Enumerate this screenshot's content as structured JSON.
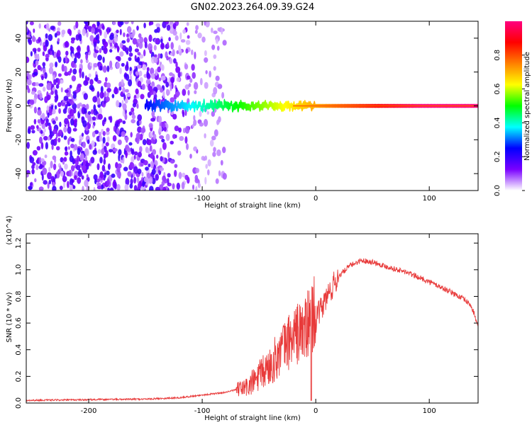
{
  "title": "GN02.2023.264.09.39.G24",
  "chart_data": [
    {
      "type": "heatmap",
      "xlabel": "Height of straight line (km)",
      "ylabel": "Frequency (Hz)",
      "xlim": [
        -255,
        143
      ],
      "ylim": [
        -50,
        50
      ],
      "xticks": [
        -200,
        -100,
        0,
        100
      ],
      "yticks": [
        40,
        20,
        0,
        -20,
        -40
      ],
      "colorbar": {
        "label": "Normalized spectral amplitude",
        "range": [
          0,
          1
        ],
        "ticks": [
          "0.0",
          "0.2",
          "0.4",
          "0.6",
          "0.8"
        ],
        "colors": [
          "#ffffff",
          "#7a00ff",
          "#0000ff",
          "#00ffff",
          "#00ff00",
          "#ffff00",
          "#ff8000",
          "#ff0000",
          "#ff0080"
        ]
      },
      "features": [
        {
          "name": "scattered noise",
          "x_range": [
            -255,
            -110
          ],
          "amplitude": 0.15
        },
        {
          "name": "ridge",
          "x_range": [
            -150,
            143
          ],
          "frequency": 0,
          "amplitude": 0.95
        }
      ]
    },
    {
      "type": "line",
      "xlabel": "Height of straight line (km)",
      "ylabel": "SNR (10 * v/v)",
      "yscale_label": "(x10^4)",
      "xlim": [
        -255,
        143
      ],
      "ylim": [
        0,
        1.27
      ],
      "xticks": [
        -200,
        -100,
        0,
        100
      ],
      "yticks": [
        "0.0",
        "0.2",
        "0.4",
        "0.6",
        "0.8",
        "1.0",
        "1.2"
      ],
      "color": "#e83a3a",
      "x": [
        -255,
        -200,
        -150,
        -120,
        -100,
        -80,
        -60,
        -50,
        -40,
        -30,
        -20,
        -10,
        -4,
        -2,
        0,
        10,
        20,
        30,
        40,
        50,
        60,
        80,
        100,
        120,
        130,
        136,
        140,
        143
      ],
      "y": [
        0.02,
        0.025,
        0.03,
        0.04,
        0.06,
        0.08,
        0.12,
        0.2,
        0.28,
        0.4,
        0.5,
        0.55,
        0.6,
        0.7,
        0.62,
        0.8,
        0.95,
        1.03,
        1.07,
        1.06,
        1.03,
        0.98,
        0.91,
        0.83,
        0.78,
        0.74,
        0.66,
        0.56
      ]
    }
  ]
}
